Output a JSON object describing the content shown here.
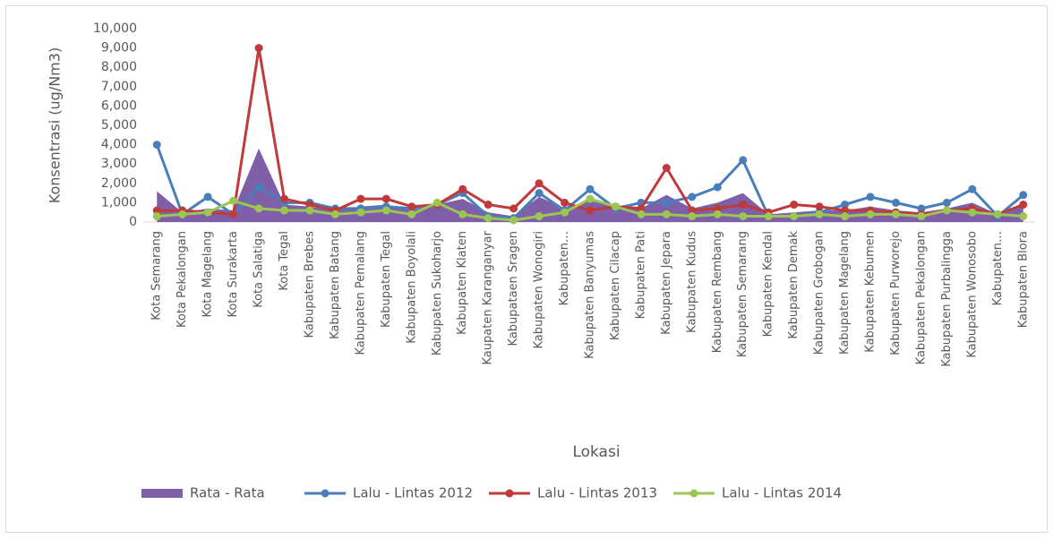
{
  "chart_data": {
    "type": "line",
    "xlabel": "Lokasi",
    "ylabel": "Konsentrasi (ug/Nm3)",
    "categories": [
      "Kota Semarang",
      "Kota Pekalongan",
      "Kota Magelang",
      "Kota Surakarta",
      "Kota Salatiga",
      "Kota Tegal",
      "Kabupaten Brebes",
      "Kabupaten Batang",
      "Kabupaten Pemalang",
      "Kabupaten Tegal",
      "Kabupaten Boyolali",
      "Kabupaten Sukoharjo",
      "Kabupaten Klaten",
      "Kaupaten Karanganyar",
      "Kabupataen Sragen",
      "Kabupaten Wonogiri",
      "Kabupaten…",
      "Kabupaten Banyumas",
      "Kabupaten Cilacap",
      "Kabupaten Pati",
      "Kabupaten Jepara",
      "Kabupaten Kudus",
      "Kabupaten Rembang",
      "Kabupaten Semarang",
      "Kabupaten Kendal",
      "Kabupaten Demak",
      "Kabupaten Grobogan",
      "Kabupaten Magelang",
      "Kabupaten Kebumen",
      "Kabupaten Purworejo",
      "Kabupaten Pekalongan",
      "Kabupaten Purbalingga",
      "Kabupaten Wonosobo",
      "Kabupaten…",
      "Kabupaten Blora"
    ],
    "series": [
      {
        "name": "Rata - Rata",
        "kind": "area",
        "color": "#7f5fa8",
        "values": [
          1600,
          500,
          700,
          600,
          3800,
          900,
          800,
          600,
          800,
          900,
          600,
          900,
          1200,
          500,
          300,
          1300,
          700,
          1100,
          800,
          700,
          1400,
          700,
          1000,
          1500,
          400,
          500,
          600,
          600,
          800,
          600,
          500,
          700,
          1000,
          400,
          900
        ]
      },
      {
        "name": "Lalu - Lintas 2012",
        "kind": "line",
        "color": "#4a7ebb",
        "values": [
          4000,
          400,
          1300,
          400,
          1800,
          1000,
          1000,
          700,
          700,
          800,
          700,
          900,
          1500,
          300,
          200,
          1500,
          600,
          1700,
          700,
          1000,
          1000,
          1300,
          1800,
          3200,
          300,
          300,
          500,
          900,
          1300,
          1000,
          700,
          1000,
          1700,
          300,
          1400
        ]
      },
      {
        "name": "Lalu - Lintas 2013",
        "kind": "line",
        "color": "#c0393b",
        "values": [
          600,
          600,
          500,
          400,
          9000,
          1200,
          900,
          600,
          1200,
          1200,
          800,
          900,
          1700,
          900,
          700,
          2000,
          1000,
          600,
          800,
          700,
          2800,
          600,
          700,
          900,
          500,
          900,
          800,
          600,
          600,
          500,
          400,
          600,
          700,
          400,
          900
        ]
      },
      {
        "name": "Lalu - Lintas 2014",
        "kind": "line",
        "color": "#9bc654",
        "values": [
          300,
          400,
          500,
          1100,
          700,
          600,
          600,
          400,
          500,
          600,
          400,
          1000,
          400,
          200,
          100,
          300,
          500,
          1200,
          800,
          400,
          400,
          300,
          400,
          300,
          300,
          300,
          400,
          300,
          400,
          400,
          300,
          600,
          500,
          400,
          300
        ]
      }
    ],
    "ylim": [
      0,
      10000
    ],
    "yticks": [
      0,
      {
        "value": 1000,
        "label": "1,000"
      },
      {
        "value": 2000,
        "label": "2,000"
      },
      {
        "value": 3000,
        "label": "3,000"
      },
      {
        "value": 4000,
        "label": "4,000"
      },
      {
        "value": 5000,
        "label": "5,000"
      },
      {
        "value": 6000,
        "label": "6,000"
      },
      {
        "value": 7000,
        "label": "7,000"
      },
      {
        "value": 8000,
        "label": "8,000"
      },
      {
        "value": 9000,
        "label": "9,000"
      },
      {
        "value": 10000,
        "label": "10,000"
      }
    ],
    "grid": false,
    "legend": "bottom"
  }
}
